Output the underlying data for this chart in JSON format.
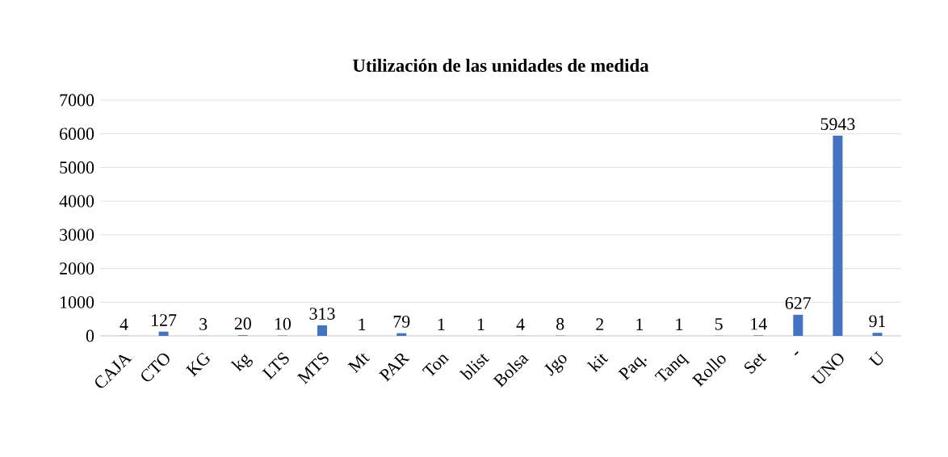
{
  "chart_data": {
    "type": "bar",
    "title": "Utilización de las unidades de medida",
    "categories": [
      "CAJA",
      "CTO",
      "KG",
      "kg",
      "LTS",
      "MTS",
      "Mt",
      "PAR",
      "Ton",
      "blist",
      "Bolsa",
      "Jgo",
      "kit",
      "Paq.",
      "Tanq",
      "Rollo",
      "Set",
      "-",
      "UNO",
      "U"
    ],
    "values": [
      4,
      127,
      3,
      20,
      10,
      313,
      1,
      79,
      1,
      1,
      4,
      8,
      2,
      1,
      1,
      5,
      14,
      627,
      5943,
      91
    ],
    "color": "#4472c4",
    "ylim": [
      0,
      7000
    ],
    "yticks": [
      0,
      1000,
      2000,
      3000,
      4000,
      5000,
      6000,
      7000
    ],
    "grid": "y",
    "data_labels": true
  }
}
